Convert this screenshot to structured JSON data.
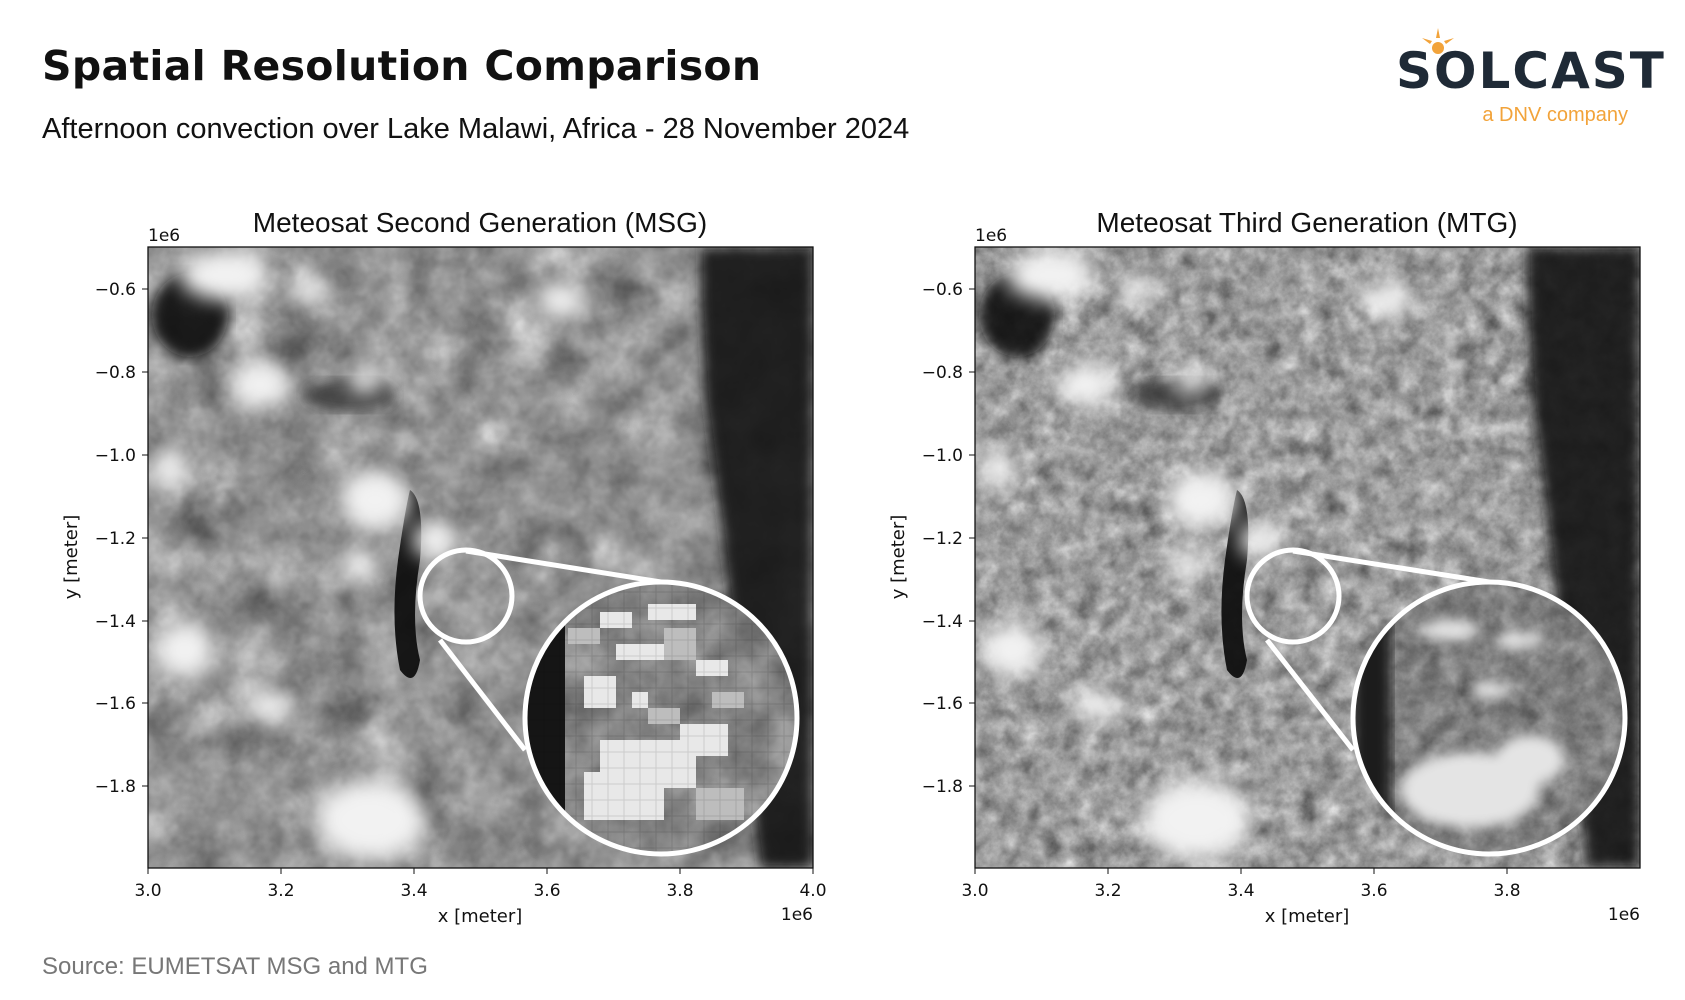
{
  "title": "Spatial Resolution Comparison",
  "subtitle": "Afternoon convection over Lake Malawi, Africa - 28 November 2024",
  "logo": {
    "wordmark": "SOLCAST",
    "tagline": "a DNV company"
  },
  "source": "Source: EUMETSAT MSG and MTG",
  "colors": {
    "brand_dark": "#1f2a36",
    "brand_accent": "#f2a33a",
    "source_text": "#777777"
  },
  "panels": [
    {
      "title": "Meteosat Second Generation (MSG)",
      "xlabel": "x [meter]",
      "ylabel": "y [meter]",
      "x_offset": "1e6",
      "y_offset": "1e6",
      "x_ticks": [
        "3.0",
        "3.2",
        "3.4",
        "3.6",
        "3.8",
        "4.0"
      ],
      "y_ticks": [
        "−0.6",
        "−0.8",
        "−1.0",
        "−1.2",
        "−1.4",
        "−1.6",
        "−1.8"
      ],
      "zoom_style": "pixelated"
    },
    {
      "title": "Meteosat Third Generation (MTG)",
      "xlabel": "x [meter]",
      "ylabel": "y [meter]",
      "x_offset": "1e6",
      "y_offset": "1e6",
      "x_ticks": [
        "3.0",
        "3.2",
        "3.4",
        "3.6",
        "3.8"
      ],
      "y_ticks": [
        "−0.6",
        "−0.8",
        "−1.0",
        "−1.2",
        "−1.4",
        "−1.6",
        "−1.8"
      ],
      "zoom_style": "fine"
    }
  ]
}
